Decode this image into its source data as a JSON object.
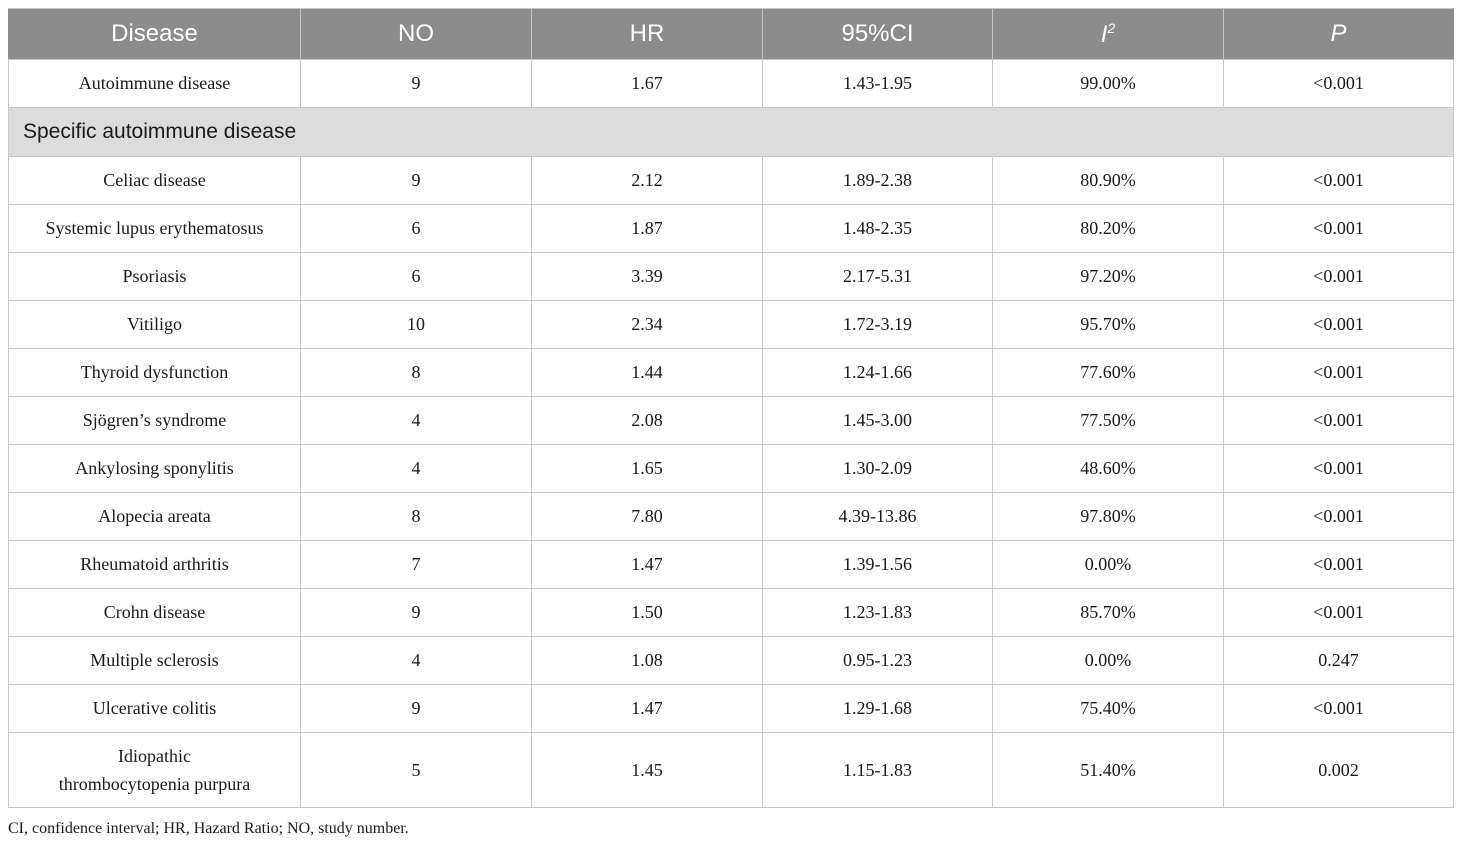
{
  "header": {
    "disease": "Disease",
    "no": "NO",
    "hr": "HR",
    "ci": "95%CI",
    "i2_base": "I",
    "i2_sup": "2",
    "p": "P"
  },
  "overall": {
    "disease": "Autoimmune disease",
    "no": "9",
    "hr": "1.67",
    "ci": "1.43-1.95",
    "i2": "99.00%",
    "p": "<0.001"
  },
  "section_label": "Specific autoimmune disease",
  "rows": [
    {
      "disease": "Celiac disease",
      "no": "9",
      "hr": "2.12",
      "ci": "1.89-2.38",
      "i2": "80.90%",
      "p": "<0.001"
    },
    {
      "disease": "Systemic lupus erythematosus",
      "no": "6",
      "hr": "1.87",
      "ci": "1.48-2.35",
      "i2": "80.20%",
      "p": "<0.001"
    },
    {
      "disease": "Psoriasis",
      "no": "6",
      "hr": "3.39",
      "ci": "2.17-5.31",
      "i2": "97.20%",
      "p": "<0.001"
    },
    {
      "disease": "Vitiligo",
      "no": "10",
      "hr": "2.34",
      "ci": "1.72-3.19",
      "i2": "95.70%",
      "p": "<0.001"
    },
    {
      "disease": "Thyroid dysfunction",
      "no": "8",
      "hr": "1.44",
      "ci": "1.24-1.66",
      "i2": "77.60%",
      "p": "<0.001"
    },
    {
      "disease": "Sjögren’s syndrome",
      "no": "4",
      "hr": "2.08",
      "ci": "1.45-3.00",
      "i2": "77.50%",
      "p": "<0.001"
    },
    {
      "disease": "Ankylosing sponylitis",
      "no": "4",
      "hr": "1.65",
      "ci": "1.30-2.09",
      "i2": "48.60%",
      "p": "<0.001"
    },
    {
      "disease": "Alopecia areata",
      "no": "8",
      "hr": "7.80",
      "ci": "4.39-13.86",
      "i2": "97.80%",
      "p": "<0.001"
    },
    {
      "disease": "Rheumatoid arthritis",
      "no": "7",
      "hr": "1.47",
      "ci": "1.39-1.56",
      "i2": "0.00%",
      "p": "<0.001"
    },
    {
      "disease": "Crohn disease",
      "no": "9",
      "hr": "1.50",
      "ci": "1.23-1.83",
      "i2": "85.70%",
      "p": "<0.001"
    },
    {
      "disease": "Multiple sclerosis",
      "no": "4",
      "hr": "1.08",
      "ci": "0.95-1.23",
      "i2": "0.00%",
      "p": "0.247"
    },
    {
      "disease": "Ulcerative colitis",
      "no": "9",
      "hr": "1.47",
      "ci": "1.29-1.68",
      "i2": "75.40%",
      "p": "<0.001"
    }
  ],
  "last_row": {
    "disease_line1": "Idiopathic",
    "disease_line2": "thrombocytopenia purpura",
    "no": "5",
    "hr": "1.45",
    "ci": "1.15-1.83",
    "i2": "51.40%",
    "p": "0.002"
  },
  "footnote": "CI, confidence interval; HR, Hazard Ratio; NO, study number."
}
